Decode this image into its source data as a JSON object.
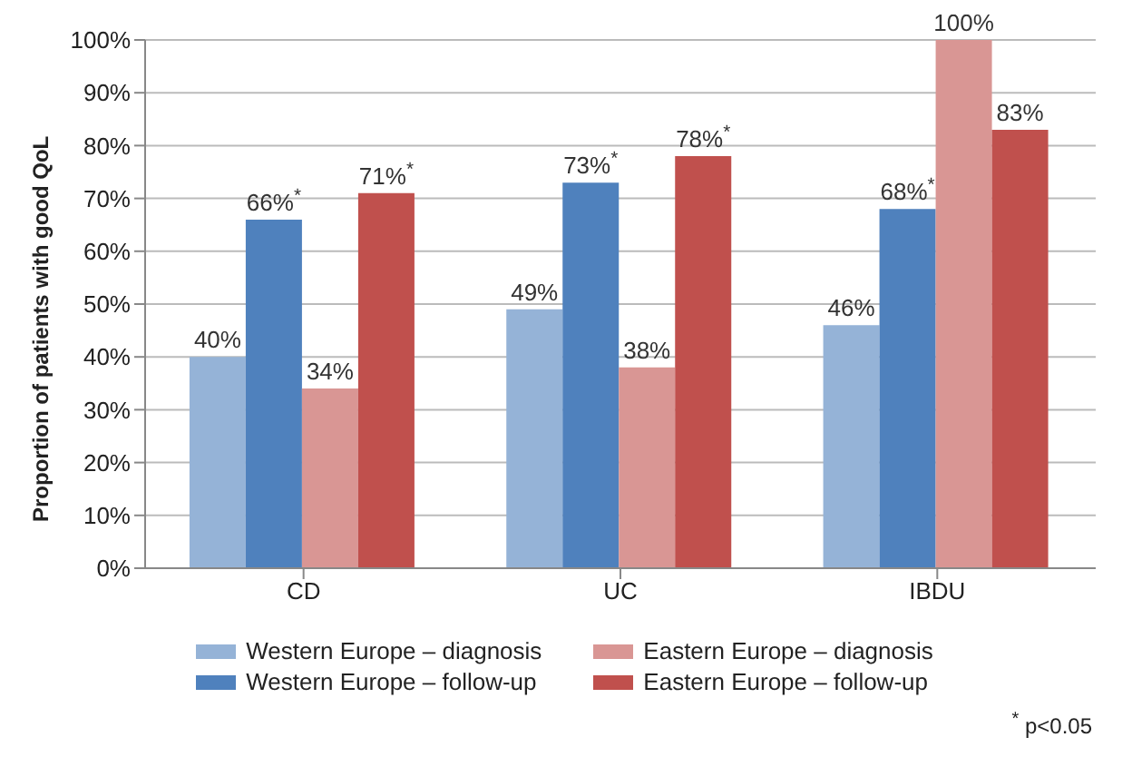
{
  "chart_data": {
    "type": "bar",
    "ylabel": "Proportion of patients with good QoL",
    "categories": [
      "CD",
      "UC",
      "IBDU"
    ],
    "series": [
      {
        "name": "Western Europe – diagnosis",
        "color": "#95b3d7",
        "values": [
          40,
          49,
          46
        ],
        "value_labels": [
          "40%",
          "49%",
          "46%"
        ]
      },
      {
        "name": "Western Europe – follow-up",
        "color": "#4f81bd",
        "values": [
          66,
          73,
          68
        ],
        "value_labels": [
          "66%$^{*}$",
          "73%$^{*}$",
          "68%$^{*}$"
        ]
      },
      {
        "name": "Eastern Europe – diagnosis",
        "color": "#d99694",
        "values": [
          34,
          38,
          100
        ],
        "value_labels": [
          "34%",
          "38%",
          "100%"
        ]
      },
      {
        "name": "Eastern Europe – follow-up",
        "color": "#c0504d",
        "values": [
          71,
          78,
          83
        ],
        "value_labels": [
          "71%$^{*}$",
          "78%$^{*}$",
          "83%"
        ]
      }
    ],
    "ylim": [
      0,
      100
    ],
    "yticks": [
      {
        "value": 0,
        "label": "0%"
      },
      {
        "value": 10,
        "label": "10%"
      },
      {
        "value": 20,
        "label": "20%"
      },
      {
        "value": 30,
        "label": "30%"
      },
      {
        "value": 40,
        "label": "40%"
      },
      {
        "value": 50,
        "label": "50%"
      },
      {
        "value": 60,
        "label": "60%"
      },
      {
        "value": 70,
        "label": "70%"
      },
      {
        "value": 80,
        "label": "80%"
      },
      {
        "value": 90,
        "label": "90%"
      },
      {
        "value": 100,
        "label": "100%"
      }
    ],
    "grid": "y",
    "legend": "bottom",
    "annotations": [
      "$^{*}$ p<0.05"
    ]
  }
}
